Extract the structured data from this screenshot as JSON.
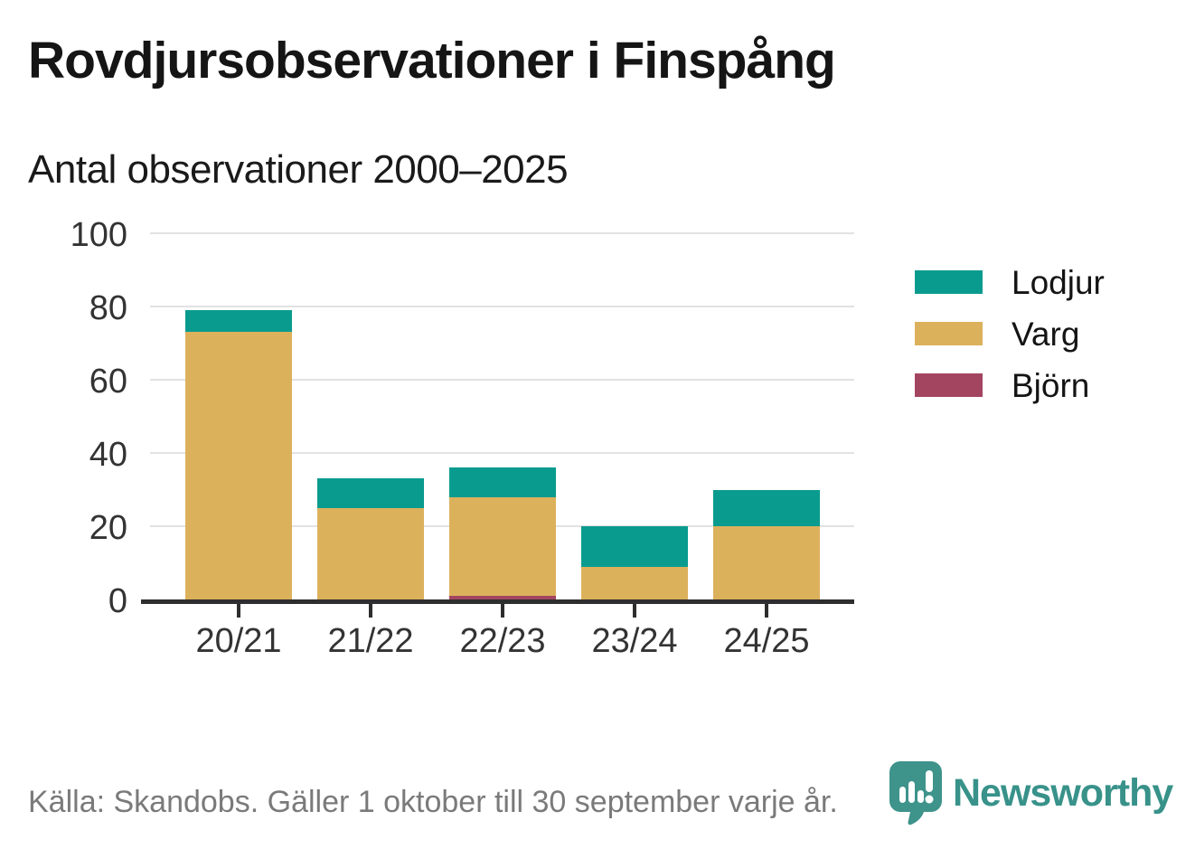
{
  "header": {
    "title": "Rovdjursobservationer i Finspång",
    "subtitle": "Antal observationer 2000–2025"
  },
  "chart_data": {
    "type": "bar",
    "stacked": true,
    "title": "Rovdjursobservationer i Finspång",
    "subtitle": "Antal observationer 2000–2025",
    "categories": [
      "20/21",
      "21/22",
      "22/23",
      "23/24",
      "24/25"
    ],
    "series": [
      {
        "name": "Lodjur",
        "color": "#0a9b8f",
        "values": [
          6,
          8,
          8,
          11,
          10
        ]
      },
      {
        "name": "Varg",
        "color": "#dcb15c",
        "values": [
          73,
          25,
          27,
          9,
          20
        ]
      },
      {
        "name": "Björn",
        "color": "#a34561",
        "values": [
          0,
          0,
          1,
          0,
          0
        ]
      }
    ],
    "stack_order": [
      "Björn",
      "Varg",
      "Lodjur"
    ],
    "totals": [
      79,
      33,
      36,
      20,
      30
    ],
    "xlabel": "",
    "ylabel": "",
    "ylim": [
      0,
      100
    ],
    "yticks": [
      0,
      20,
      40,
      60,
      80,
      100
    ],
    "grid": "horizontal",
    "legend_position": "right"
  },
  "footer": {
    "source": "Källa: Skandobs. Gäller 1 oktober till 30 september varje år."
  },
  "branding": {
    "logo_text": "Newsworthy",
    "logo_icon": "newsworthy-chart-bubble-icon",
    "logo_color": "#3e938b"
  },
  "colors": {
    "background": "#ffffff",
    "title_text": "#151515",
    "axis_text": "#333333",
    "gridline": "#e2e2e2",
    "axis_line": "#2e2e2e",
    "muted_text": "#7a7a7a",
    "brand_teal": "#38928a"
  }
}
